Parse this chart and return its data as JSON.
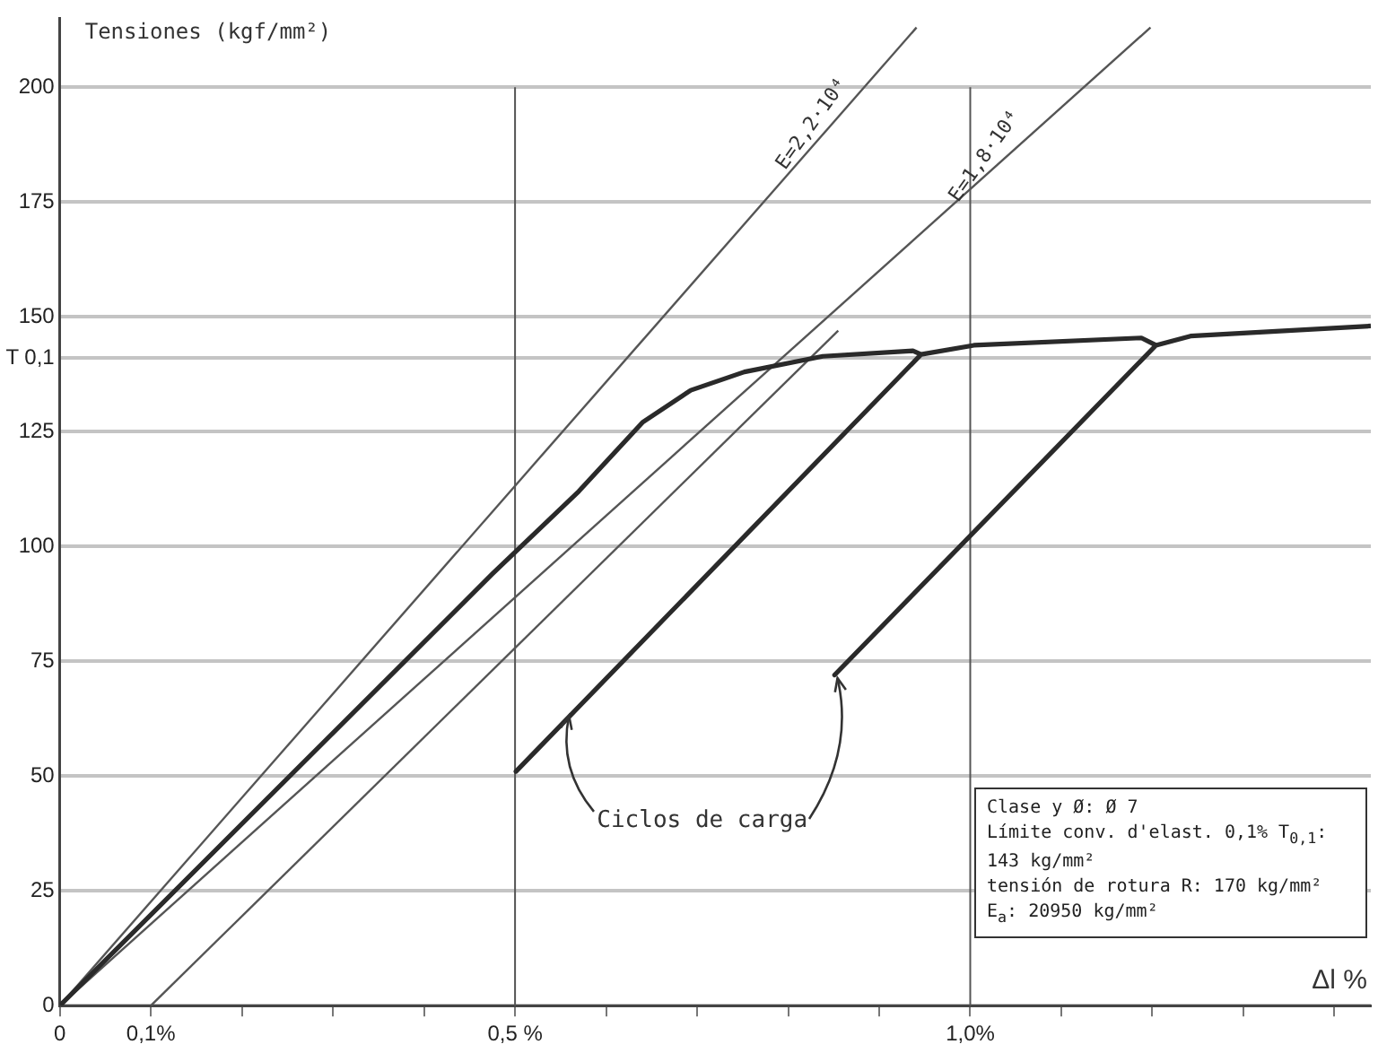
{
  "chart_data": {
    "type": "line",
    "ylabel": "Tensiones (kgf/mm²)",
    "xlabel": "Δl %",
    "xlim": [
      0,
      1.44
    ],
    "ylim": [
      0,
      215
    ],
    "xticks": [
      {
        "value": 0,
        "label": "0"
      },
      {
        "value": 0.1,
        "label": "0,1%"
      },
      {
        "value": 0.2,
        "label": null
      },
      {
        "value": 0.3,
        "label": null
      },
      {
        "value": 0.4,
        "label": null
      },
      {
        "value": 0.5,
        "label": "0,5 %"
      },
      {
        "value": 0.6,
        "label": null
      },
      {
        "value": 0.7,
        "label": null
      },
      {
        "value": 0.8,
        "label": null
      },
      {
        "value": 0.9,
        "label": null
      },
      {
        "value": 1.0,
        "label": "1,0%"
      },
      {
        "value": 1.1,
        "label": null
      },
      {
        "value": 1.2,
        "label": null
      },
      {
        "value": 1.3,
        "label": null
      },
      {
        "value": 1.4,
        "label": null
      }
    ],
    "yticks": [
      0,
      25,
      50,
      75,
      100,
      125,
      {
        "value": 141,
        "label": "T 0,1"
      },
      150,
      175,
      200
    ],
    "grid": "y",
    "marker": "none",
    "line_style": "solid",
    "legend": false,
    "series": [
      {
        "color": "#2a2a2a",
        "x": [
          0,
          0.475,
          0.57,
          0.64,
          0.693,
          0.752,
          0.838,
          0.937,
          0.946,
          0.501,
          0.946,
          1.004,
          1.188,
          1.204,
          0.851,
          1.204,
          1.242,
          1.44
        ],
        "values": [
          0,
          94,
          112,
          127,
          134,
          138,
          141.4,
          142.6,
          141.8,
          51,
          141.8,
          143.8,
          145.4,
          143.8,
          72,
          143.8,
          145.8,
          148
        ]
      },
      {
        "color": "#555555",
        "x": [
          0,
          0.941
        ],
        "values": [
          0,
          213
        ]
      },
      {
        "color": "#555555",
        "x": [
          0,
          1.198
        ],
        "values": [
          0,
          213
        ]
      },
      {
        "color": "#555555",
        "x": [
          0.1,
          0.855
        ],
        "values": [
          0,
          147
        ]
      }
    ],
    "ref_lines": [
      {
        "axis": "x",
        "value": 0.5,
        "color": "#555555"
      },
      {
        "axis": "x",
        "value": 1.0,
        "color": "#555555"
      }
    ],
    "annotations": [
      {
        "text": "E=2,2·10⁴",
        "x": 0.84,
        "y": 190
      },
      {
        "text": "E=1,8·10⁴",
        "x": 1.03,
        "y": 183
      },
      {
        "text": "Ciclos de carga",
        "x": 0.56,
        "y": 63
      },
      "Clase y Ø: Ø 7",
      "Límite conv. d'elast. 0,1% T$_{0,1}$: 143 kg/mm²",
      "tensión de rotura R: 170 kg/mm²",
      "E$_{a}$: 20950 kg/mm²"
    ]
  }
}
